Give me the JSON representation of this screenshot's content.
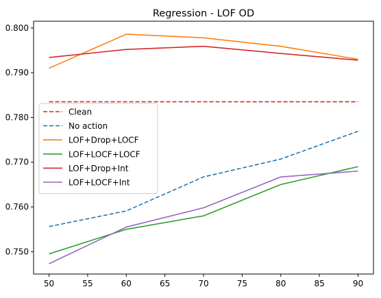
{
  "chart_data": {
    "type": "line",
    "title": "Regression - LOF OD",
    "xlabel": "",
    "ylabel": "",
    "x": [
      50,
      60,
      70,
      80,
      90
    ],
    "xticks": [
      50,
      55,
      60,
      65,
      70,
      75,
      80,
      85,
      90
    ],
    "yticks": [
      0.75,
      0.76,
      0.77,
      0.78,
      0.79,
      0.8
    ],
    "ytick_labels": [
      "0.750",
      "0.760",
      "0.770",
      "0.780",
      "0.790",
      "0.800"
    ],
    "xlim": [
      48,
      92
    ],
    "ylim": [
      0.745,
      0.8015
    ],
    "grid": false,
    "legend_position": "center-left",
    "series": [
      {
        "name": "Clean",
        "color": "#d62728",
        "dash": "dashed",
        "values": [
          0.7835,
          0.7835,
          0.7835,
          0.7835,
          0.7835
        ]
      },
      {
        "name": "No action",
        "color": "#1f77b4",
        "dash": "dashed",
        "values": [
          0.7556,
          0.7591,
          0.7667,
          0.7707,
          0.7769
        ]
      },
      {
        "name": "LOF+Drop+LOCF",
        "color": "#ff7f0e",
        "dash": "solid",
        "values": [
          0.791,
          0.7986,
          0.7978,
          0.7959,
          0.793
        ]
      },
      {
        "name": "LOF+LOCF+LOCF",
        "color": "#2ca02c",
        "dash": "solid",
        "values": [
          0.7495,
          0.755,
          0.758,
          0.765,
          0.769
        ]
      },
      {
        "name": "LOF+Drop+Int",
        "color": "#d62728",
        "dash": "solid",
        "values": [
          0.7934,
          0.7952,
          0.7959,
          0.7943,
          0.7928
        ]
      },
      {
        "name": "LOF+LOCF+Int",
        "color": "#9467bd",
        "dash": "solid",
        "values": [
          0.7473,
          0.7555,
          0.7598,
          0.7667,
          0.768
        ]
      }
    ]
  }
}
